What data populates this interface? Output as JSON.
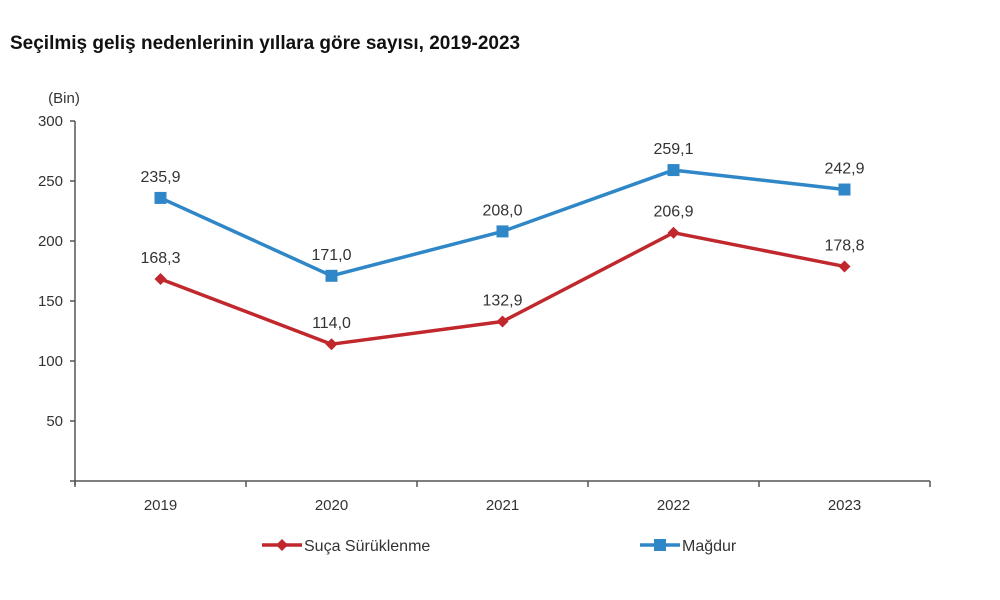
{
  "chart_data": {
    "type": "line",
    "title": "Seçilmiş geliş nedenlerinin yıllara göre sayısı, 2019-2023",
    "unit_label": "(Bin)",
    "xlabel": "",
    "ylabel": "(Bin)",
    "categories": [
      "2019",
      "2020",
      "2021",
      "2022",
      "2023"
    ],
    "ylim": [
      0,
      300
    ],
    "yticks": [
      50,
      100,
      150,
      200,
      250,
      300
    ],
    "ytick_labels": [
      "50",
      "100",
      "150",
      "200",
      "250",
      "300"
    ],
    "grid": false,
    "legend_position": "bottom",
    "series": [
      {
        "name": "Suça Sürüklenme",
        "color": "#c0282d",
        "marker": "diamond",
        "values": [
          168.3,
          114.0,
          132.9,
          206.9,
          178.8
        ],
        "labels": [
          "168,3",
          "114,0",
          "132,9",
          "206,9",
          "178,8"
        ]
      },
      {
        "name": "Mağdur",
        "color": "#2f87c8",
        "marker": "square",
        "values": [
          235.9,
          171.0,
          208.0,
          259.1,
          242.9
        ],
        "labels": [
          "235,9",
          "171,0",
          "208,0",
          "259,1",
          "242,9"
        ]
      }
    ]
  }
}
